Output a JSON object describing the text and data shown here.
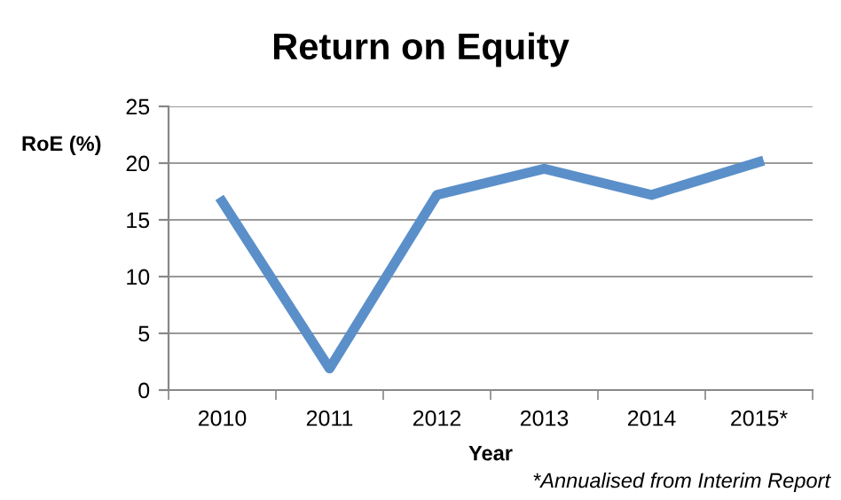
{
  "chart_data": {
    "type": "line",
    "title": "Return on Equity",
    "xlabel": "Year",
    "ylabel": "RoE (%)",
    "categories": [
      "2010",
      "2011",
      "2012",
      "2013",
      "2014",
      "2015*"
    ],
    "series": [
      {
        "color": "#5b8fc9",
        "values": [
          16.6,
          1.9,
          17.2,
          19.5,
          17.2,
          20.1
        ]
      }
    ],
    "ylim": [
      0,
      25
    ],
    "yticks": [
      0,
      5,
      10,
      15,
      20,
      25
    ],
    "grid": "y",
    "legend": false,
    "marker": "none",
    "line_style": "solid",
    "annotations": [
      "*Annualised from Interim Report"
    ]
  }
}
